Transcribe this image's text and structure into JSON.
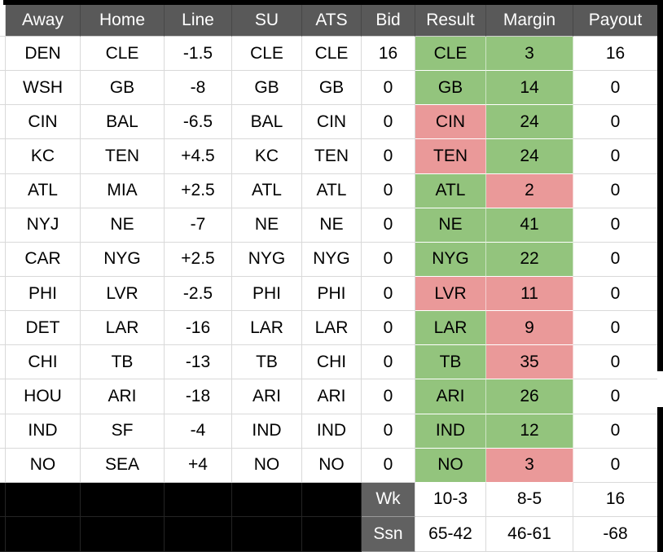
{
  "colors": {
    "header_bg": "#595959",
    "label_bg": "#616161",
    "win_green": "#93c47d",
    "loss_red": "#ea9999",
    "black": "#000000",
    "gridline": "#d9d9d9"
  },
  "table": {
    "headers": [
      "Away",
      "Home",
      "Line",
      "SU",
      "ATS",
      "Bid",
      "Result",
      "Margin",
      "Payout"
    ],
    "rows": [
      {
        "away": "DEN",
        "home": "CLE",
        "line": "-1.5",
        "su": "CLE",
        "ats": "CLE",
        "bid": "16",
        "result": "CLE",
        "result_win": true,
        "margin": "3",
        "margin_win": true,
        "payout": "16"
      },
      {
        "away": "WSH",
        "home": "GB",
        "line": "-8",
        "su": "GB",
        "ats": "GB",
        "bid": "0",
        "result": "GB",
        "result_win": true,
        "margin": "14",
        "margin_win": true,
        "payout": "0"
      },
      {
        "away": "CIN",
        "home": "BAL",
        "line": "-6.5",
        "su": "BAL",
        "ats": "CIN",
        "bid": "0",
        "result": "CIN",
        "result_win": false,
        "margin": "24",
        "margin_win": true,
        "payout": "0"
      },
      {
        "away": "KC",
        "home": "TEN",
        "line": "+4.5",
        "su": "KC",
        "ats": "TEN",
        "bid": "0",
        "result": "TEN",
        "result_win": false,
        "margin": "24",
        "margin_win": true,
        "payout": "0"
      },
      {
        "away": "ATL",
        "home": "MIA",
        "line": "+2.5",
        "su": "ATL",
        "ats": "ATL",
        "bid": "0",
        "result": "ATL",
        "result_win": true,
        "margin": "2",
        "margin_win": false,
        "payout": "0"
      },
      {
        "away": "NYJ",
        "home": "NE",
        "line": "-7",
        "su": "NE",
        "ats": "NE",
        "bid": "0",
        "result": "NE",
        "result_win": true,
        "margin": "41",
        "margin_win": true,
        "payout": "0"
      },
      {
        "away": "CAR",
        "home": "NYG",
        "line": "+2.5",
        "su": "NYG",
        "ats": "NYG",
        "bid": "0",
        "result": "NYG",
        "result_win": true,
        "margin": "22",
        "margin_win": true,
        "payout": "0"
      },
      {
        "away": "PHI",
        "home": "LVR",
        "line": "-2.5",
        "su": "PHI",
        "ats": "PHI",
        "bid": "0",
        "result": "LVR",
        "result_win": false,
        "margin": "11",
        "margin_win": false,
        "payout": "0"
      },
      {
        "away": "DET",
        "home": "LAR",
        "line": "-16",
        "su": "LAR",
        "ats": "LAR",
        "bid": "0",
        "result": "LAR",
        "result_win": true,
        "margin": "9",
        "margin_win": false,
        "payout": "0"
      },
      {
        "away": "CHI",
        "home": "TB",
        "line": "-13",
        "su": "TB",
        "ats": "CHI",
        "bid": "0",
        "result": "TB",
        "result_win": true,
        "margin": "35",
        "margin_win": false,
        "payout": "0"
      },
      {
        "away": "HOU",
        "home": "ARI",
        "line": "-18",
        "su": "ARI",
        "ats": "ARI",
        "bid": "0",
        "result": "ARI",
        "result_win": true,
        "margin": "26",
        "margin_win": true,
        "payout": "0"
      },
      {
        "away": "IND",
        "home": "SF",
        "line": "-4",
        "su": "IND",
        "ats": "IND",
        "bid": "0",
        "result": "IND",
        "result_win": true,
        "margin": "12",
        "margin_win": true,
        "payout": "0"
      },
      {
        "away": "NO",
        "home": "SEA",
        "line": "+4",
        "su": "NO",
        "ats": "NO",
        "bid": "0",
        "result": "NO",
        "result_win": true,
        "margin": "3",
        "margin_win": false,
        "payout": "0"
      }
    ],
    "footer_rows": [
      {
        "label": "Wk",
        "result": "10-3",
        "margin": "8-5",
        "payout": "16"
      },
      {
        "label": "Ssn",
        "result": "65-42",
        "margin": "46-61",
        "payout": "-68"
      }
    ]
  }
}
